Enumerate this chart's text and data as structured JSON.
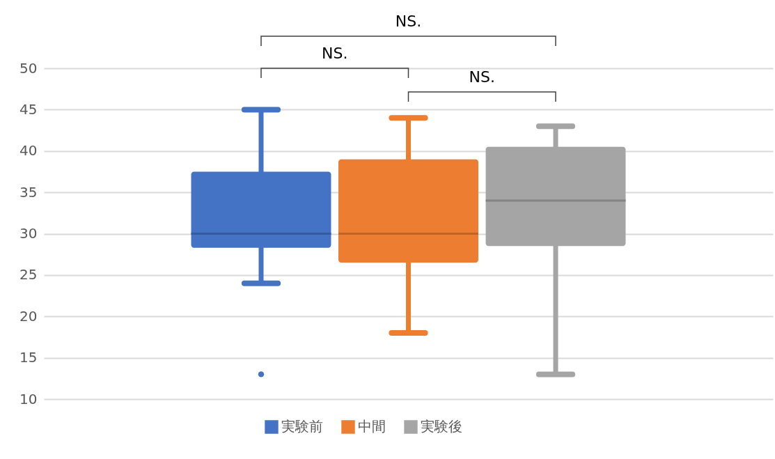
{
  "chart_data": {
    "type": "box",
    "categories": [
      null
    ],
    "series": [
      {
        "name": "実験前",
        "color": "#4472c4",
        "boxes": [
          {
            "low": 24,
            "q1": 28.3,
            "median": 30,
            "q3": 37.5,
            "high": 45,
            "outliers": [
              13
            ]
          }
        ]
      },
      {
        "name": "中間",
        "color": "#ed7d31",
        "boxes": [
          {
            "low": 18,
            "q1": 26.5,
            "median": 30,
            "q3": 39,
            "high": 44
          }
        ]
      },
      {
        "name": "実験後",
        "color": "#a5a5a5",
        "boxes": [
          {
            "low": 13,
            "q1": 28.5,
            "median": 34,
            "q3": 40.5,
            "high": 43
          }
        ]
      }
    ],
    "ylim": [
      10,
      50
    ],
    "yticks": [
      10,
      15,
      20,
      25,
      30,
      35,
      40,
      45,
      50
    ],
    "grid": "y",
    "legend": "bottom",
    "tick_labels": "y",
    "annotations": [
      "NS.",
      "NS.",
      "NS."
    ]
  }
}
